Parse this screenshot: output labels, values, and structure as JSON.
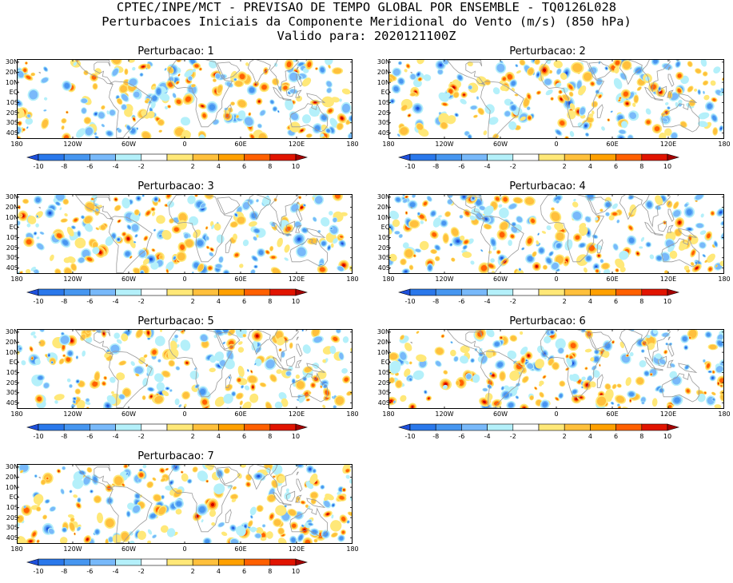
{
  "header": {
    "line1": "CPTEC/INPE/MCT - PREVISAO DE TEMPO GLOBAL POR ENSEMBLE - TQ0126L028",
    "line2": "Perturbacoes Iniciais da Componente Meridional do Vento (m/s) (850 hPa)",
    "line3": "Valido para: 2020121100Z"
  },
  "panels": [
    {
      "title": "Perturbacao: 1"
    },
    {
      "title": "Perturbacao: 2"
    },
    {
      "title": "Perturbacao: 3"
    },
    {
      "title": "Perturbacao: 4"
    },
    {
      "title": "Perturbacao: 5"
    },
    {
      "title": "Perturbacao: 6"
    },
    {
      "title": "Perturbacao: 7"
    }
  ],
  "axes": {
    "lat_labels": [
      "30N",
      "20N",
      "10N",
      "EQ",
      "10S",
      "20S",
      "30S",
      "40S"
    ],
    "lon_labels": [
      "180",
      "120W",
      "60W",
      "0",
      "60E",
      "120E",
      "180"
    ]
  },
  "colorbar": {
    "labels": [
      "-10",
      "-8",
      "-6",
      "-4",
      "-2",
      "2",
      "4",
      "6",
      "8",
      "10"
    ],
    "colors": [
      "#1e50dc",
      "#2a78eb",
      "#4696f0",
      "#78b9fa",
      "#b4f0fa",
      "#ffffff",
      "#ffe878",
      "#ffc03c",
      "#ffa000",
      "#ff6000",
      "#e11400",
      "#a50000"
    ]
  },
  "palette": {
    "land": "#9a9a9a",
    "frame": "#000000",
    "blue_shades": [
      "#b4f0fa",
      "#78b9fa",
      "#4696f0",
      "#1e50dc"
    ],
    "red_shades": [
      "#ffe878",
      "#ffc03c",
      "#ff6000",
      "#c80000"
    ]
  }
}
